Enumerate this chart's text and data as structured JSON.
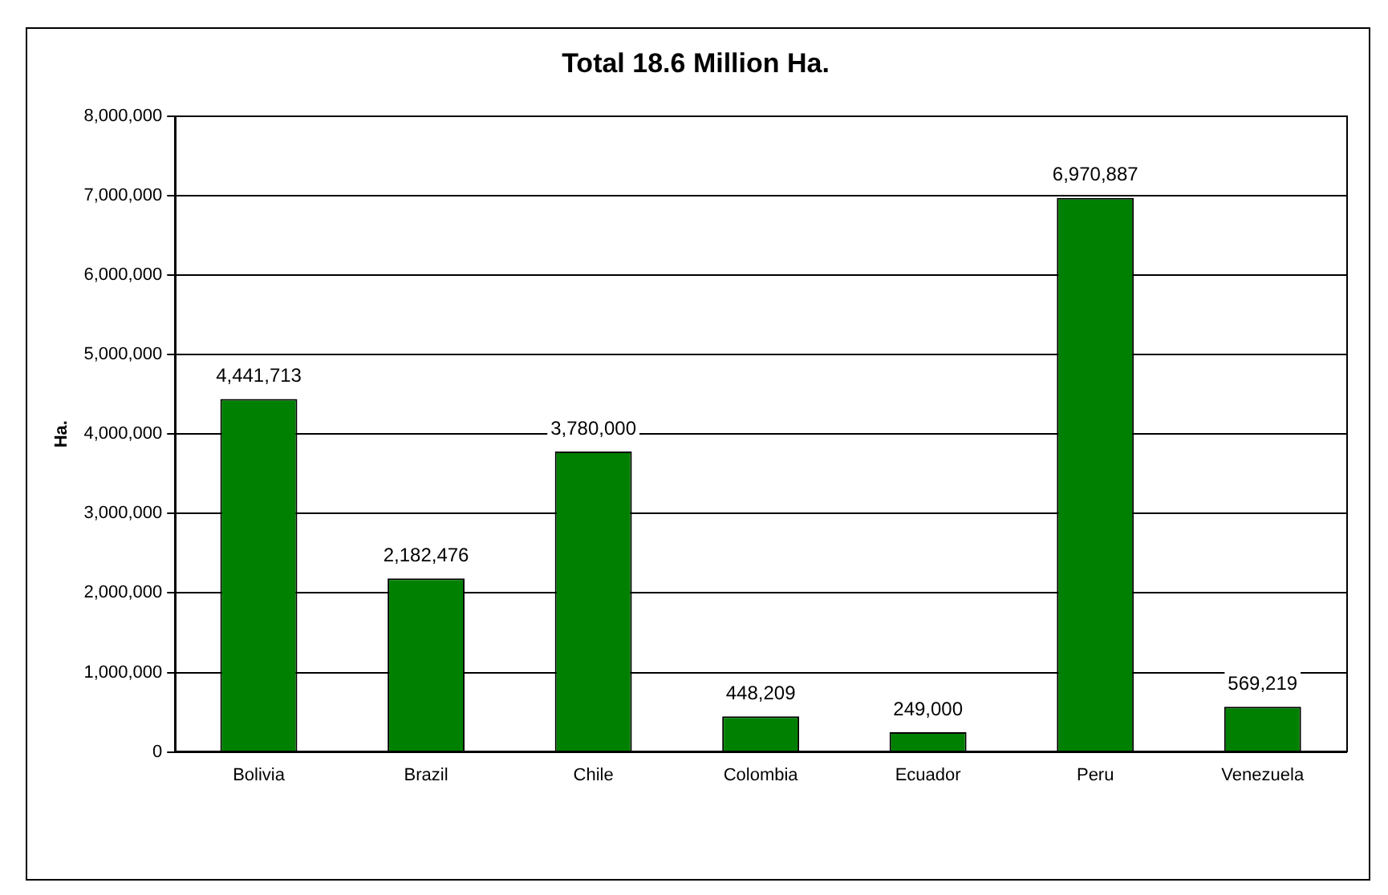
{
  "chart_data": {
    "type": "bar",
    "title": "Total 18.6 Million Ha.",
    "ylabel": "Ha.",
    "categories": [
      "Bolivia",
      "Brazil",
      "Chile",
      "Colombia",
      "Ecuador",
      "Peru",
      "Venezuela"
    ],
    "values": [
      4441713,
      2182476,
      3780000,
      448209,
      249000,
      6970887,
      569219
    ],
    "value_labels": [
      "4,441,713",
      "2,182,476",
      "3,780,000",
      "448,209",
      "249,000",
      "6,970,887",
      "569,219"
    ],
    "color": "#008000",
    "ylim": [
      0,
      8000000
    ],
    "yticks": [
      {
        "value": 0,
        "label": "0"
      },
      {
        "value": 1000000,
        "label": "1,000,000"
      },
      {
        "value": 2000000,
        "label": "2,000,000"
      },
      {
        "value": 3000000,
        "label": "3,000,000"
      },
      {
        "value": 4000000,
        "label": "4,000,000"
      },
      {
        "value": 5000000,
        "label": "5,000,000"
      },
      {
        "value": 6000000,
        "label": "6,000,000"
      },
      {
        "value": 7000000,
        "label": "7,000,000"
      },
      {
        "value": 8000000,
        "label": "8,000,000"
      }
    ],
    "grid": "y",
    "legend": false
  }
}
